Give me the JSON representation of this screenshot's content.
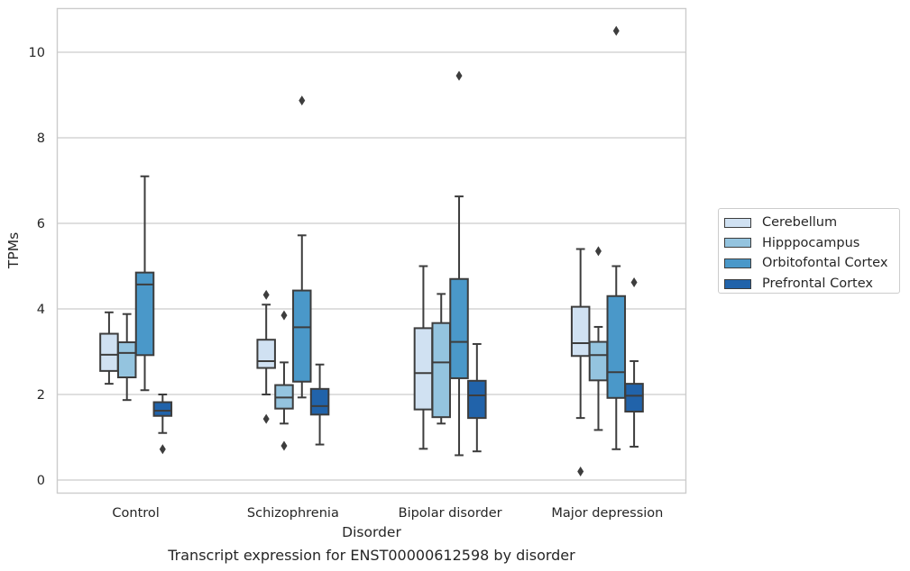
{
  "chart_data": {
    "type": "box",
    "xlabel": "Disorder",
    "ylabel": "TPMs",
    "caption": "Transcript expression for ENST00000612598 by disorder",
    "ylim": [
      -0.3,
      11.05
    ],
    "yticks": [
      0,
      2,
      4,
      6,
      8,
      10
    ],
    "grid": "horizontal",
    "legend_position": "right",
    "categories": [
      "Control",
      "Schizophrenia",
      "Bipolar disorder",
      "Major depression"
    ],
    "series": [
      {
        "name": "Cerebellum",
        "color": "#d0e1f2",
        "boxes": [
          {
            "min": 2.25,
            "q1": 2.55,
            "median": 2.93,
            "q3": 3.42,
            "max": 3.92,
            "outliers": []
          },
          {
            "min": 2.0,
            "q1": 2.62,
            "median": 2.78,
            "q3": 3.28,
            "max": 4.1,
            "outliers": [
              4.33,
              1.43
            ]
          },
          {
            "min": 0.73,
            "q1": 1.65,
            "median": 2.5,
            "q3": 3.55,
            "max": 5.0,
            "outliers": []
          },
          {
            "min": 1.45,
            "q1": 2.9,
            "median": 3.2,
            "q3": 4.05,
            "max": 5.4,
            "outliers": [
              0.2
            ]
          }
        ]
      },
      {
        "name": "Hipppocampus",
        "color": "#94c4df",
        "boxes": [
          {
            "min": 1.87,
            "q1": 2.4,
            "median": 2.97,
            "q3": 3.22,
            "max": 3.88,
            "outliers": []
          },
          {
            "min": 1.32,
            "q1": 1.67,
            "median": 1.93,
            "q3": 2.22,
            "max": 2.75,
            "outliers": [
              3.85,
              0.8
            ]
          },
          {
            "min": 1.32,
            "q1": 1.47,
            "median": 2.75,
            "q3": 3.67,
            "max": 4.35,
            "outliers": []
          },
          {
            "min": 1.17,
            "q1": 2.33,
            "median": 2.92,
            "q3": 3.23,
            "max": 3.58,
            "outliers": [
              5.35
            ]
          }
        ]
      },
      {
        "name": "Orbitofontal Cortex",
        "color": "#4a98c9",
        "boxes": [
          {
            "min": 2.1,
            "q1": 2.92,
            "median": 4.57,
            "q3": 4.85,
            "max": 7.1,
            "outliers": []
          },
          {
            "min": 1.93,
            "q1": 2.3,
            "median": 3.57,
            "q3": 4.43,
            "max": 5.72,
            "outliers": [
              8.87
            ]
          },
          {
            "min": 0.58,
            "q1": 2.38,
            "median": 3.23,
            "q3": 4.7,
            "max": 6.63,
            "outliers": [
              9.45
            ]
          },
          {
            "min": 0.72,
            "q1": 1.92,
            "median": 2.52,
            "q3": 4.3,
            "max": 5.0,
            "outliers": [
              10.5
            ]
          }
        ]
      },
      {
        "name": "Prefrontal Cortex",
        "color": "#2163aa",
        "boxes": [
          {
            "min": 1.1,
            "q1": 1.5,
            "median": 1.62,
            "q3": 1.82,
            "max": 2.0,
            "outliers": [
              0.72
            ]
          },
          {
            "min": 0.83,
            "q1": 1.53,
            "median": 1.73,
            "q3": 2.13,
            "max": 2.7,
            "outliers": []
          },
          {
            "min": 0.67,
            "q1": 1.45,
            "median": 1.98,
            "q3": 2.32,
            "max": 3.18,
            "outliers": []
          },
          {
            "min": 0.78,
            "q1": 1.6,
            "median": 1.97,
            "q3": 2.25,
            "max": 2.78,
            "outliers": [
              4.62
            ]
          }
        ]
      }
    ]
  }
}
